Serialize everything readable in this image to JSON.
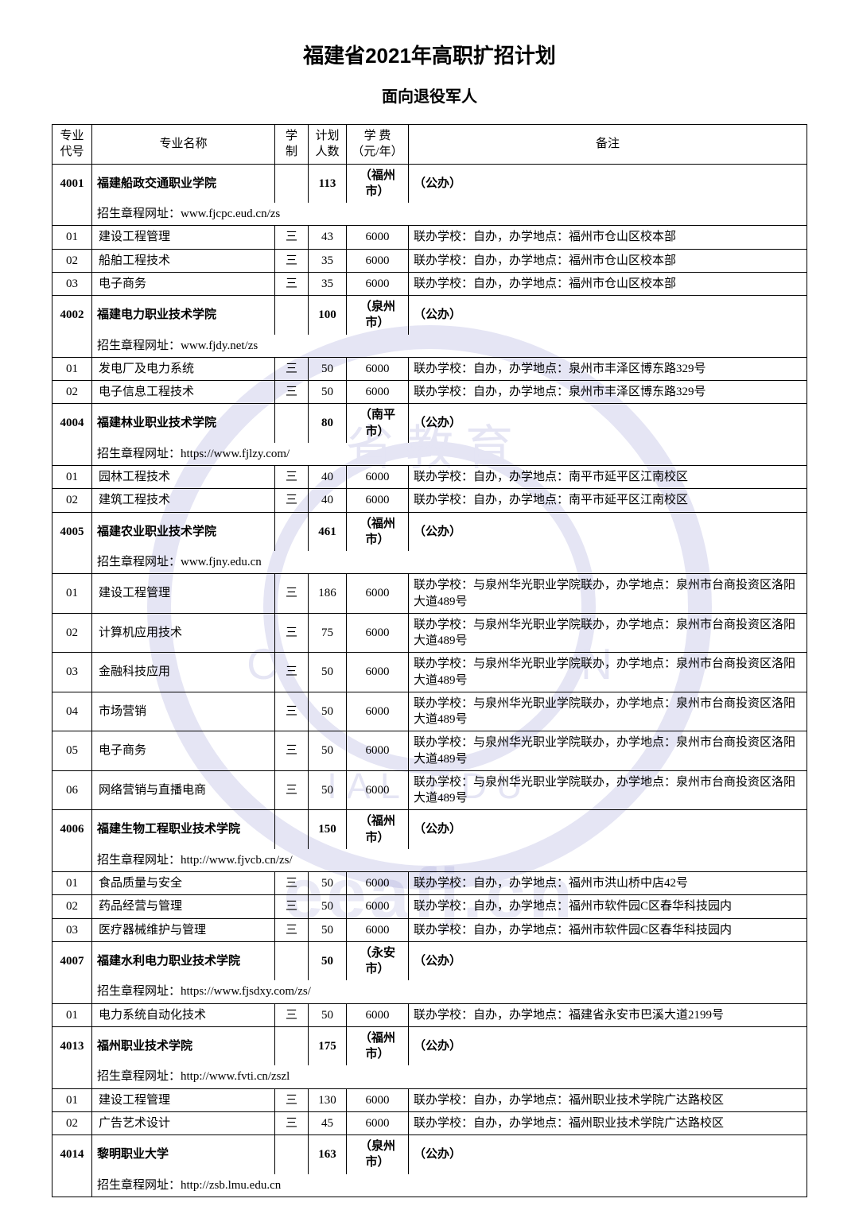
{
  "title": "福建省2021年高职扩招计划",
  "subtitle": "面向退役军人",
  "headers": {
    "code": "专业代号",
    "name": "专业名称",
    "duration": "学制",
    "plan": "计划人数",
    "fee": "学 费（元/年）",
    "remark": "备注"
  },
  "url_label": "招生章程网址：",
  "schools": [
    {
      "code": "4001",
      "name": "福建船政交通职业学院",
      "plan": "113",
      "city": "（福州市）",
      "type": "（公办）",
      "url": "www.fjcpc.eud.cn/zs",
      "majors": [
        {
          "code": "01",
          "name": "建设工程管理",
          "dur": "三",
          "plan": "43",
          "fee": "6000",
          "remark": "联办学校：自办，办学地点：福州市仓山区校本部"
        },
        {
          "code": "02",
          "name": "船舶工程技术",
          "dur": "三",
          "plan": "35",
          "fee": "6000",
          "remark": "联办学校：自办，办学地点：福州市仓山区校本部"
        },
        {
          "code": "03",
          "name": "电子商务",
          "dur": "三",
          "plan": "35",
          "fee": "6000",
          "remark": "联办学校：自办，办学地点：福州市仓山区校本部"
        }
      ]
    },
    {
      "code": "4002",
      "name": "福建电力职业技术学院",
      "plan": "100",
      "city": "（泉州市）",
      "type": "（公办）",
      "url": "www.fjdy.net/zs",
      "majors": [
        {
          "code": "01",
          "name": "发电厂及电力系统",
          "dur": "三",
          "plan": "50",
          "fee": "6000",
          "remark": "联办学校：自办，办学地点：泉州市丰泽区博东路329号"
        },
        {
          "code": "02",
          "name": "电子信息工程技术",
          "dur": "三",
          "plan": "50",
          "fee": "6000",
          "remark": "联办学校：自办，办学地点：泉州市丰泽区博东路329号"
        }
      ]
    },
    {
      "code": "4004",
      "name": "福建林业职业技术学院",
      "plan": "80",
      "city": "（南平市）",
      "type": "（公办）",
      "url": "https://www.fjlzy.com/",
      "majors": [
        {
          "code": "01",
          "name": "园林工程技术",
          "dur": "三",
          "plan": "40",
          "fee": "6000",
          "remark": "联办学校：自办，办学地点：南平市延平区江南校区"
        },
        {
          "code": "02",
          "name": "建筑工程技术",
          "dur": "三",
          "plan": "40",
          "fee": "6000",
          "remark": "联办学校：自办，办学地点：南平市延平区江南校区"
        }
      ]
    },
    {
      "code": "4005",
      "name": "福建农业职业技术学院",
      "plan": "461",
      "city": "（福州市）",
      "type": "（公办）",
      "url": "www.fjny.edu.cn",
      "majors": [
        {
          "code": "01",
          "name": "建设工程管理",
          "dur": "三",
          "plan": "186",
          "fee": "6000",
          "remark": "联办学校：与泉州华光职业学院联办，办学地点：泉州市台商投资区洛阳大道489号"
        },
        {
          "code": "02",
          "name": "计算机应用技术",
          "dur": "三",
          "plan": "75",
          "fee": "6000",
          "remark": "联办学校：与泉州华光职业学院联办，办学地点：泉州市台商投资区洛阳大道489号"
        },
        {
          "code": "03",
          "name": "金融科技应用",
          "dur": "三",
          "plan": "50",
          "fee": "6000",
          "remark": "联办学校：与泉州华光职业学院联办，办学地点：泉州市台商投资区洛阳大道489号"
        },
        {
          "code": "04",
          "name": "市场营销",
          "dur": "三",
          "plan": "50",
          "fee": "6000",
          "remark": "联办学校：与泉州华光职业学院联办，办学地点：泉州市台商投资区洛阳大道489号"
        },
        {
          "code": "05",
          "name": "电子商务",
          "dur": "三",
          "plan": "50",
          "fee": "6000",
          "remark": "联办学校：与泉州华光职业学院联办，办学地点：泉州市台商投资区洛阳大道489号"
        },
        {
          "code": "06",
          "name": "网络营销与直播电商",
          "dur": "三",
          "plan": "50",
          "fee": "6000",
          "remark": "联办学校：与泉州华光职业学院联办，办学地点：泉州市台商投资区洛阳大道489号"
        }
      ]
    },
    {
      "code": "4006",
      "name": "福建生物工程职业技术学院",
      "plan": "150",
      "city": "（福州市）",
      "type": "（公办）",
      "url": "http://www.fjvcb.cn/zs/",
      "majors": [
        {
          "code": "01",
          "name": "食品质量与安全",
          "dur": "三",
          "plan": "50",
          "fee": "6000",
          "remark": "联办学校：自办，办学地点：福州市洪山桥中店42号"
        },
        {
          "code": "02",
          "name": "药品经营与管理",
          "dur": "三",
          "plan": "50",
          "fee": "6000",
          "remark": "联办学校：自办，办学地点：福州市软件园C区春华科技园内"
        },
        {
          "code": "03",
          "name": "医疗器械维护与管理",
          "dur": "三",
          "plan": "50",
          "fee": "6000",
          "remark": "联办学校：自办，办学地点：福州市软件园C区春华科技园内"
        }
      ]
    },
    {
      "code": "4007",
      "name": "福建水利电力职业技术学院",
      "plan": "50",
      "city": "（永安市）",
      "type": "（公办）",
      "url": "https://www.fjsdxy.com/zs/",
      "majors": [
        {
          "code": "01",
          "name": "电力系统自动化技术",
          "dur": "三",
          "plan": "50",
          "fee": "6000",
          "remark": "联办学校：自办，办学地点：福建省永安市巴溪大道2199号"
        }
      ]
    },
    {
      "code": "4013",
      "name": "福州职业技术学院",
      "plan": "175",
      "city": "（福州市）",
      "type": "（公办）",
      "url": "http://www.fvti.cn/zszl",
      "majors": [
        {
          "code": "01",
          "name": "建设工程管理",
          "dur": "三",
          "plan": "130",
          "fee": "6000",
          "remark": "联办学校：自办，办学地点：福州职业技术学院广达路校区"
        },
        {
          "code": "02",
          "name": "广告艺术设计",
          "dur": "三",
          "plan": "45",
          "fee": "6000",
          "remark": "联办学校：自办，办学地点：福州职业技术学院广达路校区"
        }
      ]
    },
    {
      "code": "4014",
      "name": "黎明职业大学",
      "plan": "163",
      "city": "（泉州市）",
      "type": "（公办）",
      "url": "http://zsb.lmu.edu.cn",
      "majors": []
    }
  ]
}
